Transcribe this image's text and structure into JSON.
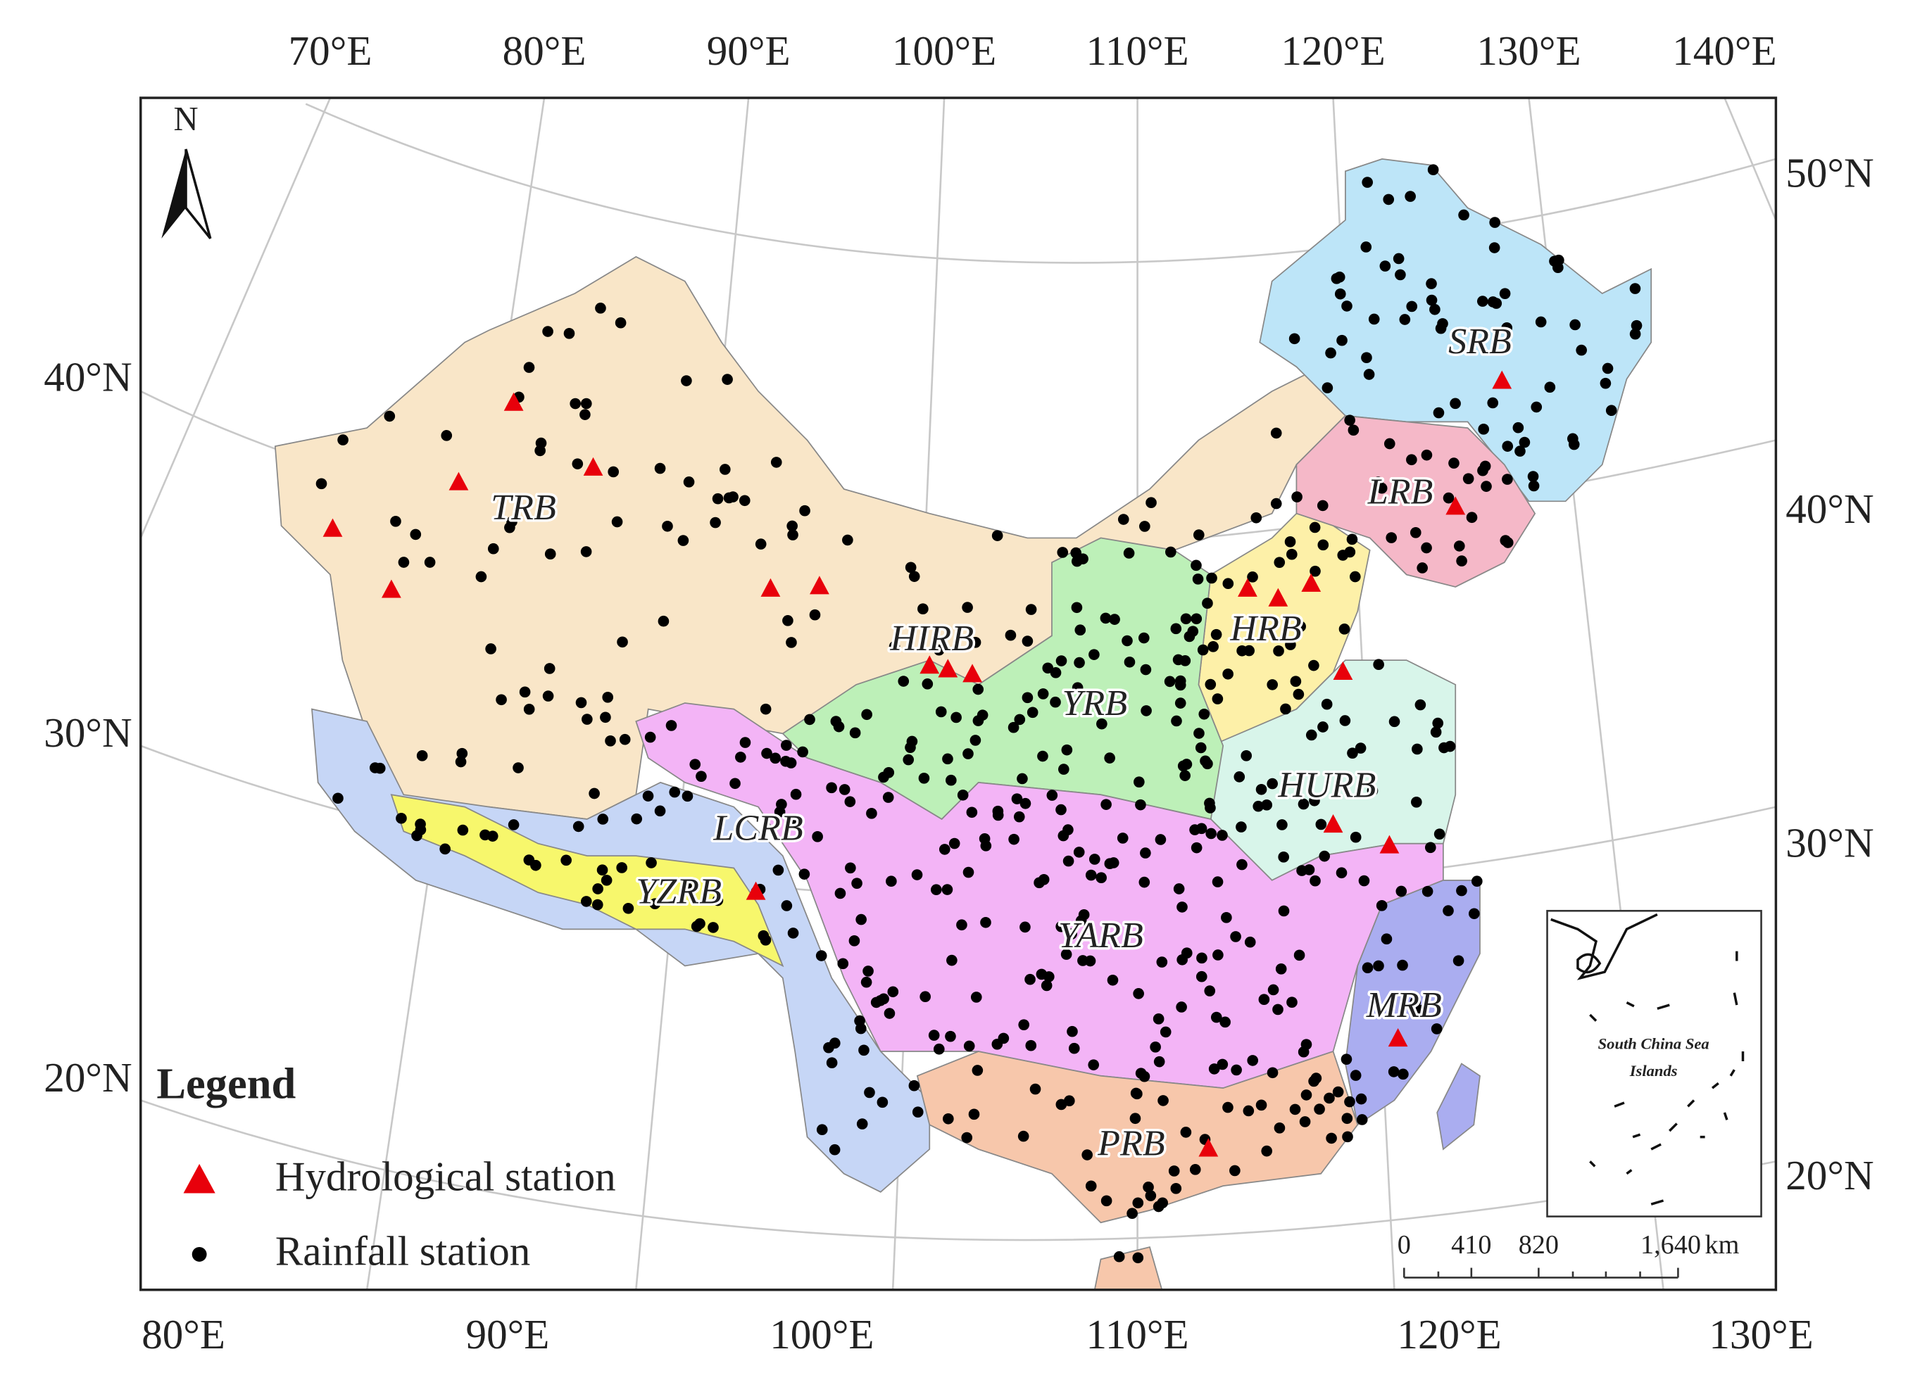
{
  "map": {
    "graticule_labels": {
      "top": [
        "70°E",
        "80°E",
        "90°E",
        "100°E",
        "110°E",
        "120°E",
        "130°E",
        "140°E"
      ],
      "bottom": [
        "80°E",
        "90°E",
        "100°E",
        "110°E",
        "120°E",
        "130°E"
      ],
      "left": [
        "20°N",
        "30°N",
        "40°N"
      ],
      "right": [
        "20°N",
        "30°N",
        "40°N",
        "50°N"
      ]
    },
    "north_arrow": "N",
    "basins": [
      "SRB",
      "LRB",
      "HRB",
      "HURB",
      "YRB",
      "HIRB",
      "TRB",
      "LCRB",
      "YZRB",
      "YARB",
      "MRB",
      "PRB"
    ],
    "legend": {
      "title": "Legend",
      "items": [
        "Hydrological station",
        "Rainfall station"
      ]
    },
    "scale_bar": {
      "labels": [
        "0",
        "410",
        "820",
        "1,640"
      ],
      "unit": "km"
    },
    "inset": {
      "label": [
        "South China Sea",
        "Islands"
      ]
    }
  }
}
